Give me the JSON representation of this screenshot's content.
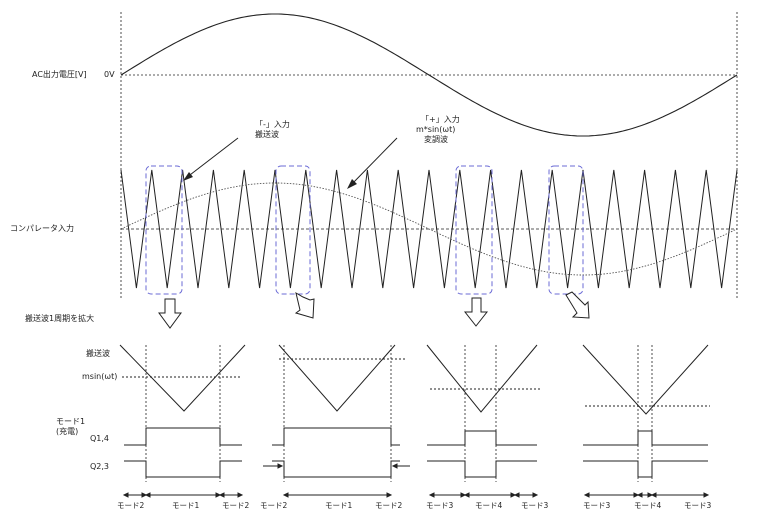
{
  "labels": {
    "ac_output": "AC出力電圧[V]",
    "zero_volt": "0V",
    "comparator_input": "コンパレータ入力",
    "minus_input": "「-」入力",
    "carrier": "搬送波",
    "plus_input": "「+」入力",
    "modulation_formula": "m*sin(ωt)",
    "modulation_wave": "変調波",
    "expand_note": "搬送波1周期を拡大",
    "carrier_small": "搬送波",
    "msin": "msin(ωt)",
    "mode1": "モード1",
    "charge": "(充電)",
    "q14": "Q1,4",
    "q23": "Q2,3"
  },
  "bottom_labels": [
    "モード2",
    "モード1",
    "モード2",
    "モード2",
    "モード1",
    "モード2",
    "モード3",
    "モード4",
    "モード3",
    "モード3",
    "モード4",
    "モード3"
  ],
  "colors": {
    "line": "#222222",
    "dashed_box": "#6b6bd6",
    "arrow_fill": "#ffffff"
  }
}
